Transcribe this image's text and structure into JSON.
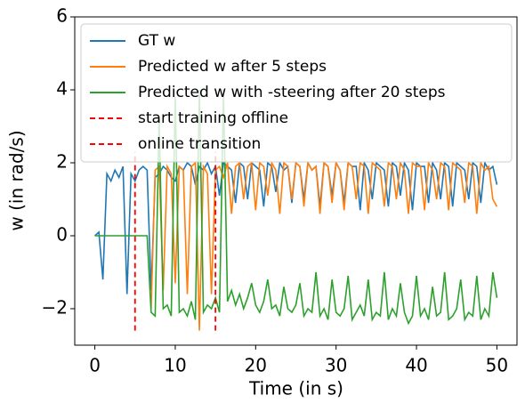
{
  "chart_data": {
    "type": "line",
    "xlabel": "Time (in s)",
    "ylabel": "w (in rad/s)",
    "xlim": [
      -2.5,
      52.5
    ],
    "xticks": [
      0,
      10,
      20,
      30,
      40,
      50
    ],
    "ylim": [
      -3,
      6
    ],
    "yticks": [
      {
        "value": -2,
        "label": "−2"
      },
      0,
      2,
      4,
      6
    ],
    "legend": "upper left",
    "x": [
      0,
      0.5,
      1,
      1.5,
      2,
      2.5,
      3,
      3.5,
      4,
      4.5,
      5,
      5.5,
      6,
      6.5,
      7,
      7.5,
      8,
      8.5,
      9,
      9.5,
      10,
      10.5,
      11,
      11.5,
      12,
      12.5,
      13,
      13.5,
      14,
      14.5,
      15,
      15.5,
      16,
      16.5,
      17,
      17.5,
      18,
      18.5,
      19,
      19.5,
      20,
      20.5,
      21,
      21.5,
      22,
      22.5,
      23,
      23.5,
      24,
      24.5,
      25,
      25.5,
      26,
      26.5,
      27,
      27.5,
      28,
      28.5,
      29,
      29.5,
      30,
      30.5,
      31,
      31.5,
      32,
      32.5,
      33,
      33.5,
      34,
      34.5,
      35,
      35.5,
      36,
      36.5,
      37,
      37.5,
      38,
      38.5,
      39,
      39.5,
      40,
      40.5,
      41,
      41.5,
      42,
      42.5,
      43,
      43.5,
      44,
      44.5,
      45,
      45.5,
      46,
      46.5,
      47,
      47.5,
      48,
      48.5,
      49,
      49.5,
      50
    ],
    "series": [
      {
        "name": "GT w",
        "color": "#1f77b4",
        "linestyle": "solid",
        "values": [
          0,
          0.1,
          -1.2,
          1.7,
          1.5,
          1.8,
          1.6,
          1.9,
          -1.6,
          1.7,
          1.5,
          1.8,
          1.9,
          1.8,
          -1.5,
          1.6,
          1.7,
          1.9,
          1.8,
          1.6,
          1.5,
          1.9,
          1.8,
          2.0,
          1.9,
          1.4,
          1.9,
          1.8,
          2.0,
          1.7,
          1.9,
          1.1,
          2.0,
          1.9,
          1.8,
          0.9,
          2.0,
          1.9,
          1.0,
          2.0,
          1.9,
          1.8,
          0.8,
          2.0,
          1.9,
          1.2,
          2.0,
          1.8,
          1.9,
          0.9,
          2.0,
          1.9,
          1.0,
          2.0,
          1.8,
          1.9,
          0.8,
          2.0,
          1.9,
          1.1,
          2.0,
          1.8,
          0.9,
          2.0,
          1.9,
          1.9,
          0.7,
          2.0,
          1.8,
          1.0,
          2.0,
          1.9,
          1.8,
          0.8,
          2.0,
          1.9,
          1.1,
          2.0,
          1.8,
          0.7,
          2.0,
          1.9,
          1.9,
          0.9,
          2.0,
          1.8,
          1.0,
          2.0,
          1.9,
          0.8,
          2.0,
          1.9,
          1.8,
          1.0,
          2.0,
          1.9,
          0.9,
          2.0,
          1.8,
          1.9,
          1.4
        ]
      },
      {
        "name": "Predicted w after 5 steps",
        "color": "#ff7f0e",
        "linestyle": "solid",
        "values": [
          null,
          null,
          null,
          null,
          null,
          null,
          null,
          null,
          null,
          null,
          null,
          null,
          null,
          null,
          -2.0,
          1.8,
          1.9,
          -1.5,
          1.9,
          1.7,
          -1.3,
          1.9,
          1.8,
          -1.6,
          1.9,
          2.0,
          -2.6,
          1.9,
          1.7,
          -1.6,
          1.8,
          1.9,
          1.6,
          2.0,
          0.6,
          1.9,
          2.0,
          1.0,
          1.9,
          2.0,
          0.7,
          2.0,
          1.9,
          1.1,
          2.0,
          1.8,
          0.6,
          2.0,
          1.9,
          1.0,
          2.0,
          1.9,
          0.8,
          2.0,
          1.8,
          1.9,
          0.6,
          2.0,
          1.9,
          0.9,
          2.0,
          1.8,
          0.7,
          2.0,
          1.9,
          1.0,
          2.0,
          1.9,
          0.6,
          2.0,
          1.9,
          1.8,
          0.8,
          2.0,
          1.9,
          1.0,
          2.0,
          1.8,
          0.6,
          2.0,
          1.9,
          1.9,
          0.7,
          2.0,
          1.8,
          1.0,
          2.0,
          1.9,
          0.7,
          2.0,
          1.9,
          1.8,
          0.9,
          2.0,
          1.9,
          0.6,
          2.0,
          1.8,
          1.9,
          1.0,
          0.8
        ]
      },
      {
        "name": "Predicted w with -steering after 20 steps",
        "color": "#2ca02c",
        "linestyle": "solid",
        "values": [
          0,
          0,
          0,
          0,
          0,
          0,
          0,
          0,
          0,
          0,
          0,
          0,
          0,
          0,
          -2.1,
          -2.2,
          3.2,
          -2.0,
          -1.9,
          -2.2,
          3.8,
          -2.1,
          -2.0,
          -2.2,
          -1.8,
          -2.3,
          4.0,
          -2.1,
          -1.9,
          -2.0,
          -1.7,
          -2.1,
          3.9,
          -1.8,
          -1.5,
          -1.9,
          -1.6,
          -2.0,
          -1.7,
          -1.3,
          -1.9,
          -2.1,
          -1.8,
          -1.2,
          -2.0,
          -1.9,
          -2.2,
          -1.4,
          -2.0,
          -2.1,
          -1.9,
          -1.3,
          -2.2,
          -2.0,
          -2.1,
          -1.0,
          -2.2,
          -2.0,
          -2.3,
          -1.2,
          -2.1,
          -2.2,
          -2.0,
          -1.1,
          -2.3,
          -2.1,
          -1.9,
          -2.2,
          -1.2,
          -2.3,
          -2.1,
          -2.2,
          -1.0,
          -2.3,
          -2.0,
          -2.2,
          -1.3,
          -2.1,
          -2.4,
          -2.2,
          -1.1,
          -2.2,
          -2.0,
          -2.3,
          -1.4,
          -2.2,
          -2.1,
          -1.0,
          -2.3,
          -2.2,
          -2.0,
          -1.2,
          -2.3,
          -2.1,
          -2.2,
          -1.1,
          -2.3,
          -2.0,
          -2.2,
          -1.0,
          -1.7
        ]
      },
      {
        "name": "start training offline",
        "color": "#ff0000",
        "linestyle": "dashed",
        "x": [
          5,
          5
        ],
        "values": [
          -2.6,
          2.3
        ]
      },
      {
        "name": "online transition",
        "color": "#ff0000",
        "linestyle": "dashed",
        "x": [
          15,
          15
        ],
        "values": [
          -2.6,
          2.3
        ]
      }
    ]
  }
}
